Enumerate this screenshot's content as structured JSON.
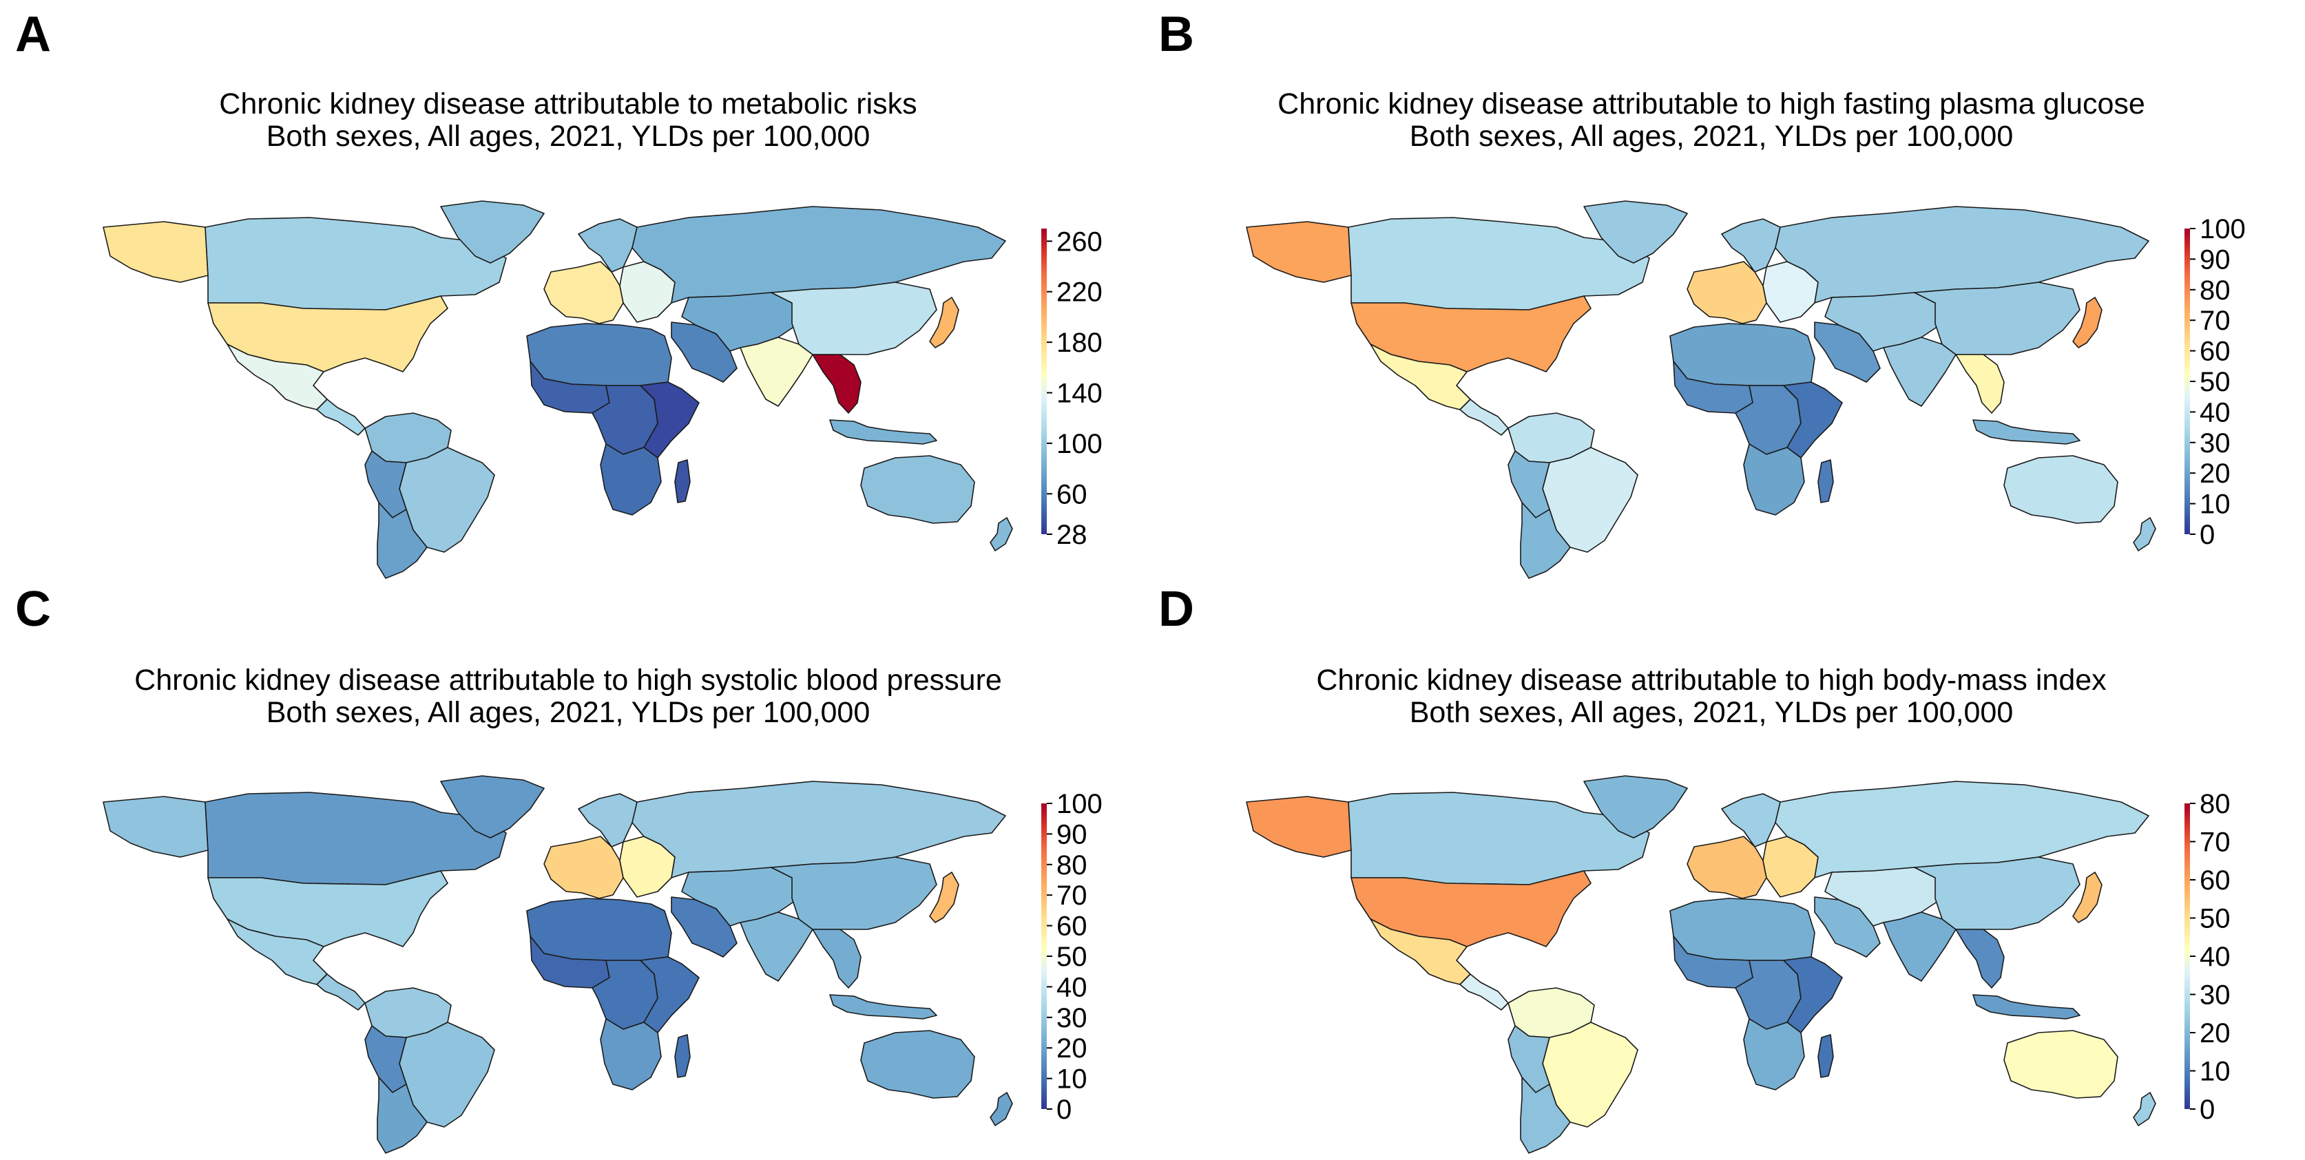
{
  "panels": [
    {
      "id": "A",
      "letter": "A",
      "title_line1": "Chronic kidney disease attributable to metabolic risks",
      "title_line2": "Both sexes, All ages, 2021, YLDs per 100,000",
      "colorbar": {
        "min": 28,
        "max": 270,
        "ticks": [
          28,
          60,
          100,
          140,
          180,
          220,
          260
        ]
      },
      "regions": {
        "alaska": 175,
        "canada": 105,
        "greenland": 95,
        "usa": 175,
        "mexico": 140,
        "central_america": 110,
        "south_america_north": 95,
        "brazil": 100,
        "andes": 70,
        "southern_cone": 75,
        "western_europe": 170,
        "scandinavia": 95,
        "eastern_europe": 140,
        "russia": 85,
        "north_africa": 60,
        "west_africa": 45,
        "central_africa": 45,
        "east_africa": 35,
        "southern_africa": 50,
        "madagascar": 40,
        "middle_east": 60,
        "iran_central_asia": 80,
        "south_asia": 150,
        "china": 120,
        "japan": 200,
        "southeast_asia": 270,
        "indonesia": 85,
        "australia": 95,
        "new_zealand": 90
      }
    },
    {
      "id": "B",
      "letter": "B",
      "title_line1": "Chronic kidney disease attributable to high fasting plasma glucose",
      "title_line2": "Both sexes, All ages, 2021, YLDs per 100,000",
      "colorbar": {
        "min": 0,
        "max": 100,
        "ticks": [
          0,
          10,
          20,
          30,
          40,
          50,
          60,
          70,
          80,
          90,
          100
        ]
      },
      "regions": {
        "alaska": 75,
        "canada": 35,
        "greenland": 30,
        "usa": 75,
        "mexico": 55,
        "central_america": 40,
        "south_america_north": 38,
        "brazil": 42,
        "andes": 25,
        "southern_cone": 25,
        "western_europe": 65,
        "scandinavia": 30,
        "eastern_europe": 45,
        "russia": 30,
        "north_africa": 20,
        "west_africa": 15,
        "central_africa": 15,
        "east_africa": 10,
        "southern_africa": 20,
        "madagascar": 12,
        "middle_east": 18,
        "iran_central_asia": 30,
        "south_asia": 30,
        "china": 30,
        "japan": 75,
        "southeast_asia": 55,
        "indonesia": 25,
        "australia": 38,
        "new_zealand": 30
      }
    },
    {
      "id": "C",
      "letter": "C",
      "title_line1": "Chronic kidney disease attributable to high systolic blood pressure",
      "title_line2": "Both sexes, All ages, 2021, YLDs per 100,000",
      "colorbar": {
        "min": 0,
        "max": 100,
        "ticks": [
          0,
          10,
          20,
          30,
          40,
          50,
          60,
          70,
          80,
          90,
          100
        ]
      },
      "regions": {
        "alaska": 28,
        "canada": 18,
        "greenland": 18,
        "usa": 32,
        "mexico": 32,
        "central_america": 30,
        "south_america_north": 30,
        "brazil": 28,
        "andes": 15,
        "southern_cone": 20,
        "western_europe": 65,
        "scandinavia": 30,
        "eastern_europe": 55,
        "russia": 30,
        "north_africa": 10,
        "west_africa": 8,
        "central_africa": 10,
        "east_africa": 10,
        "southern_africa": 18,
        "madagascar": 10,
        "middle_east": 12,
        "iran_central_asia": 25,
        "south_asia": 25,
        "china": 25,
        "japan": 70,
        "southeast_asia": 22,
        "indonesia": 22,
        "australia": 22,
        "new_zealand": 20
      }
    },
    {
      "id": "D",
      "letter": "D",
      "title_line1": "Chronic kidney disease attributable to high body-mass index",
      "title_line2": "Both sexes, All ages, 2021, YLDs per 100,000",
      "colorbar": {
        "min": 0,
        "max": 80,
        "ticks": [
          0,
          10,
          20,
          30,
          40,
          50,
          60,
          70,
          80
        ]
      },
      "regions": {
        "alaska": 62,
        "canada": 25,
        "greenland": 20,
        "usa": 62,
        "mexico": 50,
        "central_america": 35,
        "south_america_north": 40,
        "brazil": 42,
        "andes": 22,
        "southern_cone": 22,
        "western_europe": 55,
        "scandinavia": 25,
        "eastern_europe": 50,
        "russia": 28,
        "north_africa": 18,
        "west_africa": 12,
        "central_africa": 12,
        "east_africa": 8,
        "southern_africa": 18,
        "madagascar": 8,
        "middle_east": 20,
        "iran_central_asia": 32,
        "south_asia": 18,
        "china": 25,
        "japan": 55,
        "southeast_asia": 12,
        "indonesia": 15,
        "australia": 42,
        "new_zealand": 25
      }
    }
  ]
}
